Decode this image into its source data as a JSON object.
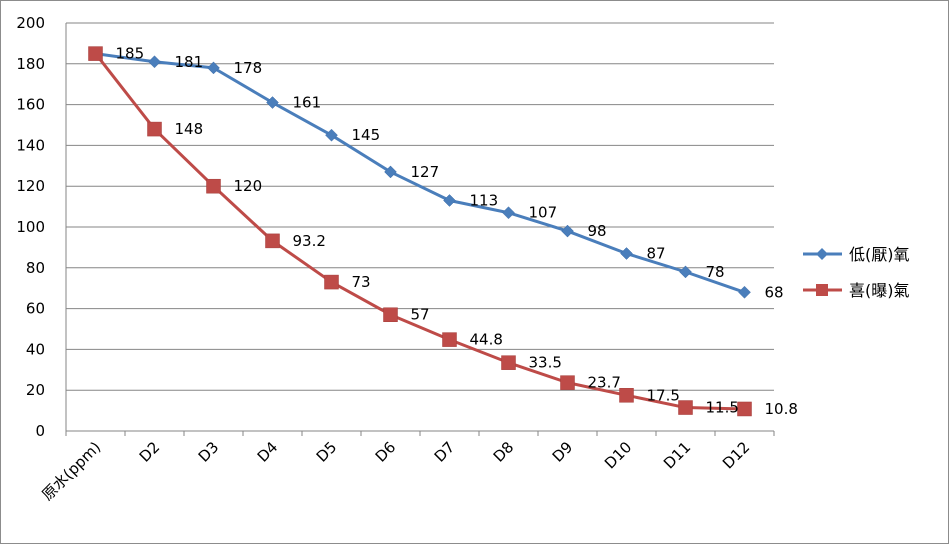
{
  "chart_data": {
    "type": "line",
    "title": "",
    "xlabel": "",
    "ylabel": "",
    "ylim": [
      0,
      200
    ],
    "yticks": [
      0,
      20,
      40,
      60,
      80,
      100,
      120,
      140,
      160,
      180,
      200
    ],
    "grid": true,
    "legend_position": "right",
    "categories": [
      "原水(ppm)",
      "D2",
      "D3",
      "D4",
      "D5",
      "D6",
      "D7",
      "D8",
      "D9",
      "D10",
      "D11",
      "D12"
    ],
    "series": [
      {
        "name": "低(厭)氧",
        "color": "#4a7ebb",
        "marker": "diamond",
        "values": [
          185,
          181,
          178,
          161,
          145,
          127,
          113,
          107,
          98,
          87,
          78,
          68
        ]
      },
      {
        "name": "喜(曝)氣",
        "color": "#be4b48",
        "marker": "square",
        "values": [
          185,
          148,
          120,
          93.2,
          73,
          57,
          44.8,
          33.5,
          23.7,
          17.5,
          11.5,
          10.8
        ]
      }
    ]
  }
}
